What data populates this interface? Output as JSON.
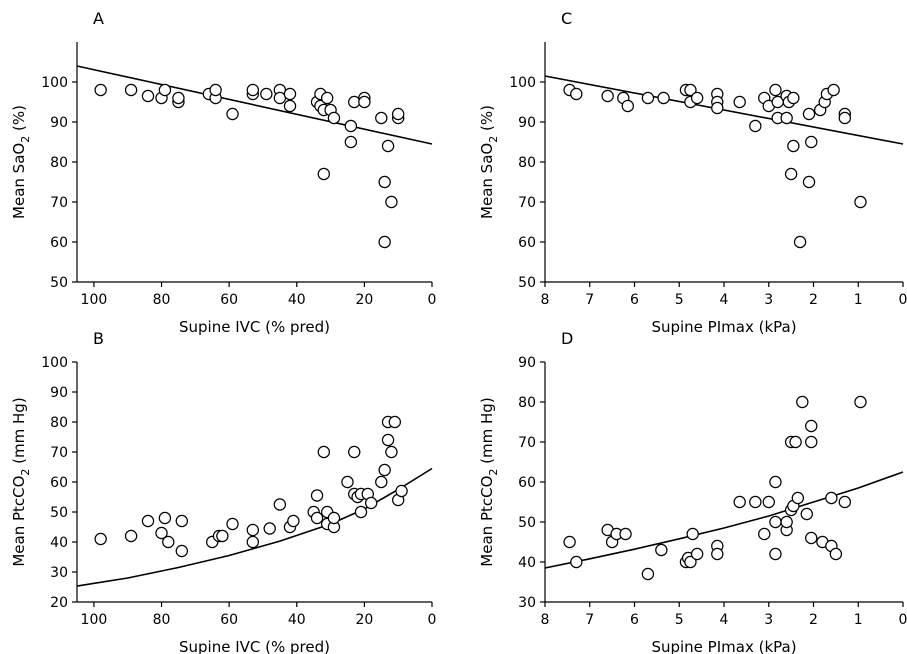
{
  "chart_data": [
    {
      "panel": "A",
      "type": "scatter",
      "xlabel": "Supine IVC (% pred)",
      "ylabel_main": "Mean SaO",
      "ylabel_sub": "2",
      "ylabel_tail": " (%)",
      "xlim": [
        105,
        0
      ],
      "ylim": [
        50,
        110
      ],
      "xticks": [
        100,
        80,
        60,
        40,
        20,
        0
      ],
      "yticks": [
        50,
        60,
        70,
        80,
        90,
        100
      ],
      "fit_line": [
        [
          105,
          104
        ],
        [
          0,
          84.5
        ]
      ],
      "points": [
        [
          98,
          98
        ],
        [
          89,
          98
        ],
        [
          84,
          96.5
        ],
        [
          80,
          96
        ],
        [
          79,
          98
        ],
        [
          75,
          95
        ],
        [
          75,
          96
        ],
        [
          66,
          97
        ],
        [
          64,
          96
        ],
        [
          64,
          98
        ],
        [
          59,
          92
        ],
        [
          53,
          97
        ],
        [
          53,
          98
        ],
        [
          49,
          97
        ],
        [
          45,
          98
        ],
        [
          45,
          96
        ],
        [
          42,
          97
        ],
        [
          42,
          94
        ],
        [
          34,
          95
        ],
        [
          33,
          94
        ],
        [
          33,
          97
        ],
        [
          32,
          93
        ],
        [
          31,
          96
        ],
        [
          30,
          93
        ],
        [
          29,
          91
        ],
        [
          24,
          89
        ],
        [
          24,
          85
        ],
        [
          23,
          95
        ],
        [
          20,
          96
        ],
        [
          20,
          95
        ],
        [
          15,
          91
        ],
        [
          13,
          84
        ],
        [
          12,
          70
        ],
        [
          14,
          75
        ],
        [
          10,
          91
        ],
        [
          10,
          92
        ],
        [
          32,
          77
        ],
        [
          14,
          60
        ]
      ]
    },
    {
      "panel": "C",
      "type": "scatter",
      "xlabel": "Supine PImax (kPa)",
      "ylabel_main": "Mean SaO",
      "ylabel_sub": "2",
      "ylabel_tail": " (%)",
      "xlim": [
        8,
        0
      ],
      "ylim": [
        50,
        110
      ],
      "xticks": [
        8,
        7,
        6,
        5,
        4,
        3,
        2,
        1,
        0
      ],
      "yticks": [
        50,
        60,
        70,
        80,
        90,
        100
      ],
      "fit_line": [
        [
          8,
          101.5
        ],
        [
          0,
          84.5
        ]
      ],
      "points": [
        [
          7.45,
          98
        ],
        [
          7.3,
          97
        ],
        [
          6.6,
          96.5
        ],
        [
          6.25,
          96
        ],
        [
          6.15,
          94
        ],
        [
          5.7,
          96
        ],
        [
          5.35,
          96
        ],
        [
          4.85,
          98
        ],
        [
          4.75,
          95
        ],
        [
          4.75,
          98
        ],
        [
          4.6,
          96
        ],
        [
          4.15,
          97
        ],
        [
          4.15,
          95
        ],
        [
          4.15,
          93.5
        ],
        [
          3.65,
          95
        ],
        [
          3.3,
          89
        ],
        [
          3.1,
          96
        ],
        [
          3.0,
          94
        ],
        [
          2.85,
          98
        ],
        [
          2.8,
          95
        ],
        [
          2.8,
          91
        ],
        [
          2.6,
          96.5
        ],
        [
          2.55,
          95
        ],
        [
          2.6,
          91
        ],
        [
          2.45,
          96
        ],
        [
          2.45,
          84
        ],
        [
          2.1,
          92
        ],
        [
          2.05,
          85
        ],
        [
          1.85,
          93
        ],
        [
          1.75,
          95
        ],
        [
          1.7,
          97
        ],
        [
          1.55,
          98
        ],
        [
          1.3,
          92
        ],
        [
          1.3,
          91
        ],
        [
          2.5,
          77
        ],
        [
          2.1,
          75
        ],
        [
          0.95,
          70
        ],
        [
          2.3,
          60
        ]
      ]
    },
    {
      "panel": "B",
      "type": "scatter",
      "xlabel": "Supine IVC (% pred)",
      "ylabel_main": "Mean PtcCO",
      "ylabel_sub": "2",
      "ylabel_tail": " (mm Hg)",
      "xlim": [
        105,
        0
      ],
      "ylim": [
        20,
        100
      ],
      "xticks": [
        100,
        80,
        60,
        40,
        20,
        0
      ],
      "yticks": [
        20,
        30,
        40,
        50,
        60,
        70,
        80,
        90,
        100
      ],
      "fit_line": [
        [
          105,
          25.3
        ],
        [
          90,
          28
        ],
        [
          75,
          31.5
        ],
        [
          60,
          35.5
        ],
        [
          45,
          40.3
        ],
        [
          30,
          46
        ],
        [
          20,
          51
        ],
        [
          10,
          57.5
        ],
        [
          0,
          64.5
        ]
      ],
      "points": [
        [
          98,
          41
        ],
        [
          89,
          42
        ],
        [
          84,
          47
        ],
        [
          80,
          43
        ],
        [
          79,
          48
        ],
        [
          78,
          40
        ],
        [
          74,
          47
        ],
        [
          74,
          37
        ],
        [
          65,
          40
        ],
        [
          63,
          42
        ],
        [
          62,
          42
        ],
        [
          59,
          46
        ],
        [
          53,
          44
        ],
        [
          53,
          40
        ],
        [
          48,
          44.5
        ],
        [
          45,
          52.5
        ],
        [
          42,
          45
        ],
        [
          41,
          47
        ],
        [
          35,
          50
        ],
        [
          34,
          55.5
        ],
        [
          34,
          48
        ],
        [
          32,
          70
        ],
        [
          31,
          46
        ],
        [
          31,
          50
        ],
        [
          29,
          45
        ],
        [
          29,
          48
        ],
        [
          25,
          60
        ],
        [
          23,
          70
        ],
        [
          23,
          56
        ],
        [
          22,
          55
        ],
        [
          21,
          50
        ],
        [
          21,
          56
        ],
        [
          19,
          56
        ],
        [
          18,
          53
        ],
        [
          15,
          60
        ],
        [
          14,
          64
        ],
        [
          13,
          80
        ],
        [
          13,
          74
        ],
        [
          12,
          70
        ],
        [
          11,
          80
        ],
        [
          10,
          54
        ],
        [
          9,
          57
        ]
      ]
    },
    {
      "panel": "D",
      "type": "scatter",
      "xlabel": "Supine PImax (kPa)",
      "ylabel_main": "Mean PtcCO",
      "ylabel_sub": "2",
      "ylabel_tail": " (mm Hg)",
      "xlim": [
        8,
        0
      ],
      "ylim": [
        30,
        90
      ],
      "xticks": [
        8,
        7,
        6,
        5,
        4,
        3,
        2,
        1,
        0
      ],
      "yticks": [
        30,
        40,
        50,
        60,
        70,
        80,
        90
      ],
      "fit_line": [
        [
          8,
          38.5
        ],
        [
          7,
          40.8
        ],
        [
          6,
          43.2
        ],
        [
          5,
          45.8
        ],
        [
          4,
          48.5
        ],
        [
          3,
          51.5
        ],
        [
          2,
          55
        ],
        [
          1,
          58.5
        ],
        [
          0,
          62.5
        ]
      ],
      "points": [
        [
          7.45,
          45
        ],
        [
          7.3,
          40
        ],
        [
          6.6,
          48
        ],
        [
          6.5,
          45
        ],
        [
          6.4,
          47
        ],
        [
          6.2,
          47
        ],
        [
          5.7,
          37
        ],
        [
          5.4,
          43
        ],
        [
          4.85,
          40
        ],
        [
          4.8,
          41
        ],
        [
          4.75,
          40
        ],
        [
          4.7,
          47
        ],
        [
          4.6,
          42
        ],
        [
          4.15,
          44
        ],
        [
          4.15,
          42
        ],
        [
          3.65,
          55
        ],
        [
          3.3,
          55
        ],
        [
          3.1,
          47
        ],
        [
          3.0,
          55
        ],
        [
          2.85,
          60
        ],
        [
          2.85,
          50
        ],
        [
          2.85,
          42
        ],
        [
          2.6,
          48
        ],
        [
          2.6,
          50
        ],
        [
          2.5,
          70
        ],
        [
          2.5,
          53
        ],
        [
          2.45,
          54
        ],
        [
          2.4,
          70
        ],
        [
          2.35,
          56
        ],
        [
          2.25,
          80
        ],
        [
          2.15,
          52
        ],
        [
          2.05,
          74
        ],
        [
          2.05,
          70
        ],
        [
          2.05,
          46
        ],
        [
          1.8,
          45
        ],
        [
          1.6,
          44
        ],
        [
          1.6,
          56
        ],
        [
          1.5,
          42
        ],
        [
          1.3,
          55
        ],
        [
          0.95,
          80
        ]
      ]
    }
  ]
}
